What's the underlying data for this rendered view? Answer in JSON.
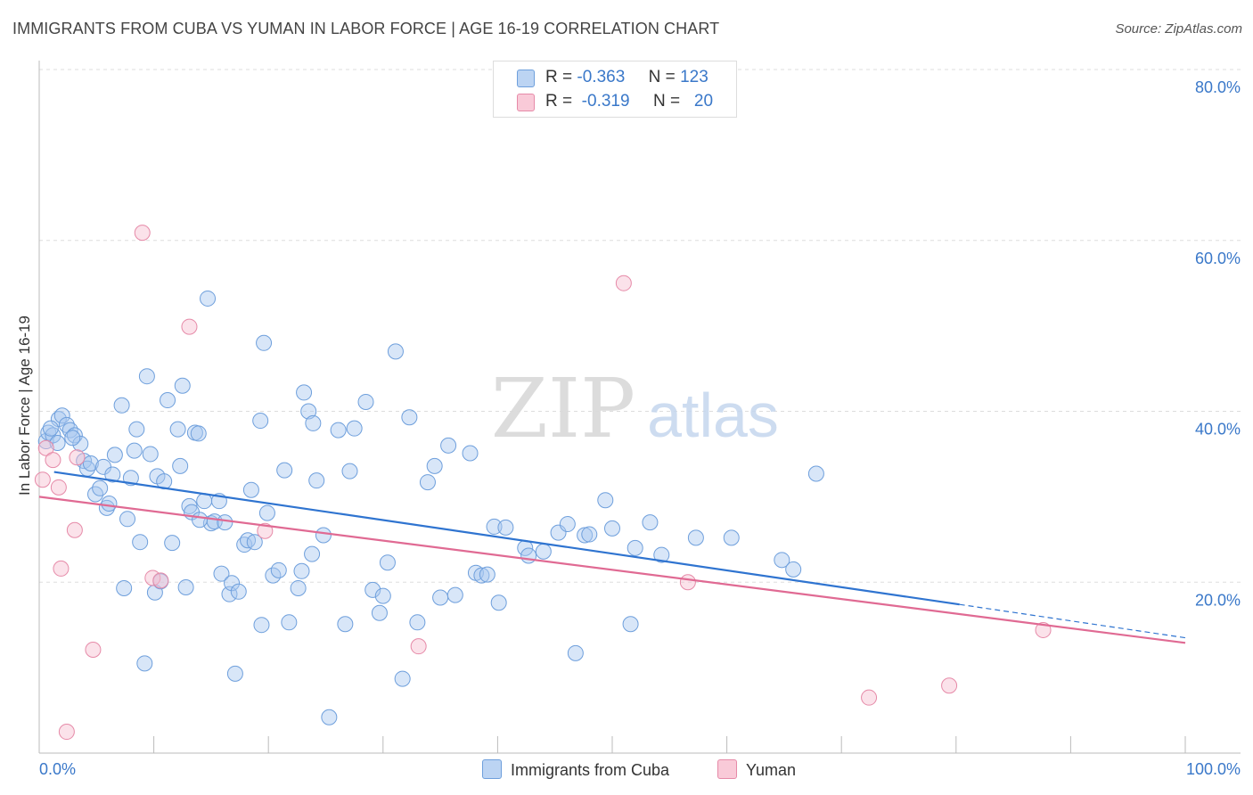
{
  "title": "IMMIGRANTS FROM CUBA VS YUMAN IN LABOR FORCE | AGE 16-19 CORRELATION CHART",
  "source": "Source: ZipAtlas.com",
  "watermark": {
    "zip": "ZIP",
    "atlas": "atlas"
  },
  "colors": {
    "blue_fill": "#a9c8ef",
    "blue_stroke": "#6e9fdc",
    "blue_line": "#2f74d0",
    "pink_fill": "#f6bfd0",
    "pink_stroke": "#e68aa8",
    "pink_line": "#e06a93",
    "axis_text": "#3a78c9",
    "grid": "#dddddd"
  },
  "legend": {
    "series1": {
      "r_label": "R =",
      "r_value": "-0.363",
      "n_label": "N =",
      "n_value": "123"
    },
    "series2": {
      "r_label": "R =",
      "r_value": "-0.319",
      "n_label": "N =",
      "n_value": "20"
    }
  },
  "bottom_legend": {
    "series1": "Immigrants from Cuba",
    "series2": "Yuman"
  },
  "chart_data": {
    "type": "scatter",
    "xlabel": "",
    "ylabel": "In Labor Force | Age 16-19",
    "xlim": [
      0,
      100
    ],
    "ylim": [
      0,
      80
    ],
    "x_tick_labels": [
      "0.0%",
      "100.0%"
    ],
    "y_ticks": [
      20,
      40,
      60,
      80
    ],
    "y_tick_labels": [
      "20.0%",
      "40.0%",
      "60.0%",
      "80.0%"
    ],
    "grid": "horizontal dashed",
    "series": [
      {
        "name": "Immigrants from Cuba",
        "color": "#6e9fdc",
        "trend": {
          "x0": 1.3,
          "y0": 32.9,
          "x1": 80.3,
          "y1": 17.4,
          "dash_to_x": 100,
          "dash_to_y": 13.5
        },
        "points": [
          [
            0.6,
            36.5
          ],
          [
            0.8,
            37.5
          ],
          [
            1.2,
            37.2
          ],
          [
            1.6,
            36.3
          ],
          [
            1.7,
            39.1
          ],
          [
            2.0,
            39.5
          ],
          [
            2.4,
            38.4
          ],
          [
            2.7,
            37.8
          ],
          [
            3.1,
            37.2
          ],
          [
            3.6,
            36.2
          ],
          [
            3.9,
            34.2
          ],
          [
            4.2,
            33.3
          ],
          [
            4.5,
            33.9
          ],
          [
            4.9,
            30.3
          ],
          [
            5.3,
            31.0
          ],
          [
            5.6,
            33.5
          ],
          [
            5.9,
            28.7
          ],
          [
            6.1,
            29.2
          ],
          [
            6.4,
            32.6
          ],
          [
            6.6,
            34.9
          ],
          [
            7.2,
            40.7
          ],
          [
            7.4,
            19.3
          ],
          [
            7.7,
            27.4
          ],
          [
            8.0,
            32.2
          ],
          [
            8.3,
            35.4
          ],
          [
            8.5,
            37.9
          ],
          [
            8.8,
            24.7
          ],
          [
            9.2,
            10.5
          ],
          [
            9.4,
            44.1
          ],
          [
            9.7,
            35.0
          ],
          [
            10.1,
            18.8
          ],
          [
            10.3,
            32.4
          ],
          [
            10.6,
            20.1
          ],
          [
            10.9,
            31.8
          ],
          [
            11.2,
            41.3
          ],
          [
            11.6,
            24.6
          ],
          [
            12.1,
            37.9
          ],
          [
            12.3,
            33.6
          ],
          [
            12.5,
            43.0
          ],
          [
            12.8,
            19.4
          ],
          [
            13.1,
            28.9
          ],
          [
            13.3,
            28.2
          ],
          [
            13.6,
            37.5
          ],
          [
            13.9,
            37.4
          ],
          [
            14.4,
            29.5
          ],
          [
            14.7,
            53.2
          ],
          [
            15.0,
            26.9
          ],
          [
            15.3,
            27.1
          ],
          [
            15.7,
            29.5
          ],
          [
            15.9,
            21.0
          ],
          [
            16.2,
            27.0
          ],
          [
            16.6,
            18.6
          ],
          [
            16.8,
            19.9
          ],
          [
            17.1,
            9.3
          ],
          [
            17.4,
            18.9
          ],
          [
            17.9,
            24.4
          ],
          [
            18.2,
            24.9
          ],
          [
            18.5,
            30.8
          ],
          [
            18.8,
            24.7
          ],
          [
            19.3,
            38.9
          ],
          [
            19.4,
            15.0
          ],
          [
            19.6,
            48.0
          ],
          [
            19.9,
            28.1
          ],
          [
            20.4,
            20.8
          ],
          [
            20.9,
            21.4
          ],
          [
            21.4,
            33.1
          ],
          [
            21.8,
            15.3
          ],
          [
            22.6,
            19.3
          ],
          [
            22.9,
            21.3
          ],
          [
            23.1,
            42.2
          ],
          [
            23.5,
            40.0
          ],
          [
            23.8,
            23.3
          ],
          [
            23.9,
            38.6
          ],
          [
            24.2,
            31.9
          ],
          [
            24.8,
            25.5
          ],
          [
            25.3,
            4.2
          ],
          [
            26.1,
            37.8
          ],
          [
            26.7,
            15.1
          ],
          [
            27.1,
            33.0
          ],
          [
            27.5,
            38.0
          ],
          [
            28.5,
            41.1
          ],
          [
            29.1,
            19.1
          ],
          [
            29.7,
            16.4
          ],
          [
            30.0,
            18.4
          ],
          [
            30.4,
            22.3
          ],
          [
            31.1,
            47.0
          ],
          [
            31.7,
            8.7
          ],
          [
            32.3,
            39.3
          ],
          [
            33.0,
            15.3
          ],
          [
            33.9,
            31.7
          ],
          [
            34.5,
            33.6
          ],
          [
            35.0,
            18.2
          ],
          [
            35.7,
            36.0
          ],
          [
            36.3,
            18.5
          ],
          [
            37.6,
            35.1
          ],
          [
            38.1,
            21.1
          ],
          [
            38.6,
            20.8
          ],
          [
            39.1,
            20.9
          ],
          [
            39.7,
            26.5
          ],
          [
            40.1,
            17.6
          ],
          [
            40.7,
            26.4
          ],
          [
            42.4,
            24.0
          ],
          [
            42.7,
            23.1
          ],
          [
            44.0,
            23.6
          ],
          [
            45.3,
            25.8
          ],
          [
            46.1,
            26.8
          ],
          [
            46.8,
            11.7
          ],
          [
            47.6,
            25.5
          ],
          [
            48.0,
            25.6
          ],
          [
            49.4,
            29.6
          ],
          [
            50.0,
            26.3
          ],
          [
            51.6,
            15.1
          ],
          [
            52.0,
            24.0
          ],
          [
            53.3,
            27.0
          ],
          [
            54.3,
            23.2
          ],
          [
            57.3,
            25.2
          ],
          [
            60.4,
            25.2
          ],
          [
            64.8,
            22.6
          ],
          [
            65.8,
            21.5
          ],
          [
            67.8,
            32.7
          ],
          [
            1.0,
            38.0
          ],
          [
            2.9,
            36.9
          ],
          [
            14.0,
            27.3
          ]
        ]
      },
      {
        "name": "Yuman",
        "color": "#e68aa8",
        "trend": {
          "x0": 0,
          "y0": 30.0,
          "x1": 100,
          "y1": 12.9
        },
        "points": [
          [
            0.3,
            32.0
          ],
          [
            0.6,
            35.7
          ],
          [
            1.2,
            34.3
          ],
          [
            1.7,
            31.1
          ],
          [
            1.9,
            21.6
          ],
          [
            2.4,
            2.5
          ],
          [
            3.1,
            26.1
          ],
          [
            3.3,
            34.6
          ],
          [
            4.7,
            12.1
          ],
          [
            9.0,
            60.9
          ],
          [
            9.9,
            20.5
          ],
          [
            10.6,
            20.2
          ],
          [
            13.1,
            49.9
          ],
          [
            19.7,
            26.0
          ],
          [
            33.1,
            12.5
          ],
          [
            51.0,
            55.0
          ],
          [
            56.6,
            20.0
          ],
          [
            72.4,
            6.5
          ],
          [
            79.4,
            7.9
          ],
          [
            87.6,
            14.4
          ]
        ]
      }
    ]
  }
}
